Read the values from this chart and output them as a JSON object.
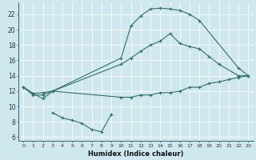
{
  "xlabel": "Humidex (Indice chaleur)",
  "bg_color": "#cfe8f0",
  "grid_color": "#ffffff",
  "line_color": "#2d6e6e",
  "xlim": [
    -0.5,
    23.5
  ],
  "ylim": [
    5.5,
    23.5
  ],
  "xticks": [
    0,
    1,
    2,
    3,
    4,
    5,
    6,
    7,
    8,
    9,
    10,
    11,
    12,
    13,
    14,
    15,
    16,
    17,
    18,
    19,
    20,
    21,
    22,
    23
  ],
  "yticks": [
    6,
    8,
    10,
    12,
    14,
    16,
    18,
    20,
    22
  ],
  "line1_x": [
    0,
    1,
    2,
    3,
    10,
    11,
    12,
    13,
    14,
    15,
    16,
    17,
    18,
    22,
    23
  ],
  "line1_y": [
    12.5,
    11.7,
    11.0,
    12.0,
    16.3,
    20.5,
    21.8,
    22.7,
    22.8,
    22.7,
    22.5,
    22.0,
    21.2,
    15.0,
    14.0
  ],
  "line2_x": [
    0,
    1,
    2,
    3,
    10,
    11,
    12,
    13,
    14,
    15,
    16,
    17,
    18,
    19,
    20,
    22,
    23
  ],
  "line2_y": [
    12.5,
    11.7,
    11.8,
    12.0,
    15.5,
    16.3,
    17.2,
    18.0,
    18.5,
    19.5,
    18.2,
    17.8,
    17.5,
    16.5,
    15.5,
    14.0,
    14.0
  ],
  "line3_x": [
    0,
    1,
    2,
    3,
    10,
    11,
    12,
    13,
    14,
    15,
    16,
    17,
    18,
    19,
    20,
    21,
    22,
    23
  ],
  "line3_y": [
    12.5,
    11.5,
    11.5,
    12.0,
    11.2,
    11.2,
    11.5,
    11.5,
    11.8,
    11.8,
    12.0,
    12.5,
    12.5,
    13.0,
    13.2,
    13.5,
    13.8,
    14.0
  ],
  "line4_x": [
    3,
    4,
    5,
    6,
    7,
    8,
    9
  ],
  "line4_y": [
    9.2,
    8.5,
    8.2,
    7.8,
    7.0,
    6.7,
    9.0
  ]
}
